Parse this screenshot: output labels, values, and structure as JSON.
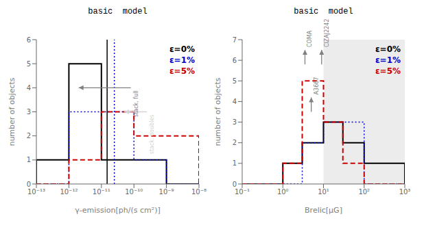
{
  "chart_data": [
    {
      "type": "histogram",
      "title": "basic  model",
      "x_label": "γ-emission[ph/(s cm²)]",
      "y_label": "number of objects",
      "log": "x",
      "grid": false,
      "legend": "upper right",
      "xlim": [
        1e-13,
        1e-08
      ],
      "xticks": [
        {
          "value": 1e-13,
          "label": "10⁻¹³"
        },
        {
          "value": 1e-12,
          "label": "10⁻¹²"
        },
        {
          "value": 1e-11,
          "label": "10⁻¹¹"
        },
        {
          "value": 1e-10,
          "label": "10⁻¹⁰"
        },
        {
          "value": 1e-09,
          "label": "10⁻⁹"
        },
        {
          "value": 1e-08,
          "label": "10⁻⁸"
        }
      ],
      "ylim": [
        0,
        6
      ],
      "yticks": [
        0,
        1,
        2,
        3,
        4,
        5,
        6
      ],
      "bins": [
        1e-13,
        1e-12,
        1e-11,
        1e-10,
        1e-09,
        1e-08
      ],
      "series": [
        {
          "name": "ε=0%",
          "color": "#000000",
          "line_style": "solid",
          "values": [
            1,
            5,
            1,
            1,
            0
          ]
        },
        {
          "name": "ε=1%",
          "color": "#0000cc",
          "line_style": "dotted",
          "values": [
            0,
            3,
            3,
            1,
            0
          ]
        },
        {
          "name": "ε=5%",
          "color": "#cc0000",
          "line_style": "dashed",
          "values": [
            0,
            1,
            3,
            2,
            2
          ]
        }
      ],
      "vlines": [
        {
          "x": 1.5e-11,
          "color": "#000000",
          "line_style": "solid"
        },
        {
          "x": 2.5e-11,
          "color": "#0000cc",
          "line_style": "dotted"
        }
      ],
      "annotations": [
        {
          "text": "stack. full",
          "color": "#808080",
          "x_from": 8e-11,
          "y_from": 4.0,
          "x_to": 2e-12,
          "y_to": 4.0
        },
        {
          "text": "stack. doubles",
          "color": "#d3d3d3",
          "x_from": 2.5e-10,
          "y_from": 3.0,
          "x_to": 5e-11,
          "y_to": 3.0
        }
      ]
    },
    {
      "type": "histogram",
      "title": "basic  model",
      "x_label": "Brelic[μG]",
      "y_label": "number of objects",
      "log": "x",
      "grid": false,
      "legend": "upper right",
      "xlim": [
        0.1,
        1000
      ],
      "xticks": [
        {
          "value": 0.1,
          "label": "10⁻¹"
        },
        {
          "value": 1,
          "label": "10⁰"
        },
        {
          "value": 10,
          "label": "10¹"
        },
        {
          "value": 100,
          "label": "10²"
        },
        {
          "value": 1000,
          "label": "10³"
        }
      ],
      "ylim": [
        0,
        7
      ],
      "yticks": [
        0,
        1,
        2,
        3,
        4,
        5,
        6,
        7
      ],
      "bins": [
        0.1,
        1.0,
        3.0,
        10.0,
        30.0,
        100.0,
        1000.0
      ],
      "series": [
        {
          "name": "ε=0%",
          "color": "#000000",
          "line_style": "solid",
          "values": [
            0,
            1,
            2,
            3,
            2,
            1
          ]
        },
        {
          "name": "ε=1%",
          "color": "#0000cc",
          "line_style": "dotted",
          "values": [
            0,
            0,
            2,
            3,
            3,
            0
          ]
        },
        {
          "name": "ε=5%",
          "color": "#cc0000",
          "line_style": "dashed",
          "values": [
            0,
            1,
            5,
            3,
            1,
            0
          ]
        }
      ],
      "spans": [
        {
          "x0": 10.0,
          "x1": 1000.0,
          "color": "#808080"
        }
      ],
      "annotations": [
        {
          "text": "COMA",
          "color": "#808080",
          "x_from": 3.5,
          "y_from": 5.8,
          "x_to": 3.5,
          "y_to": 6.5
        },
        {
          "text": "A3667",
          "color": "#808080",
          "x_from": 5.0,
          "y_from": 3.5,
          "x_to": 5.0,
          "y_to": 4.2
        },
        {
          "text": "CIZAJ2242",
          "color": "#808080",
          "x_from": 9.0,
          "y_from": 5.8,
          "x_to": 9.0,
          "y_to": 6.5
        }
      ]
    }
  ]
}
